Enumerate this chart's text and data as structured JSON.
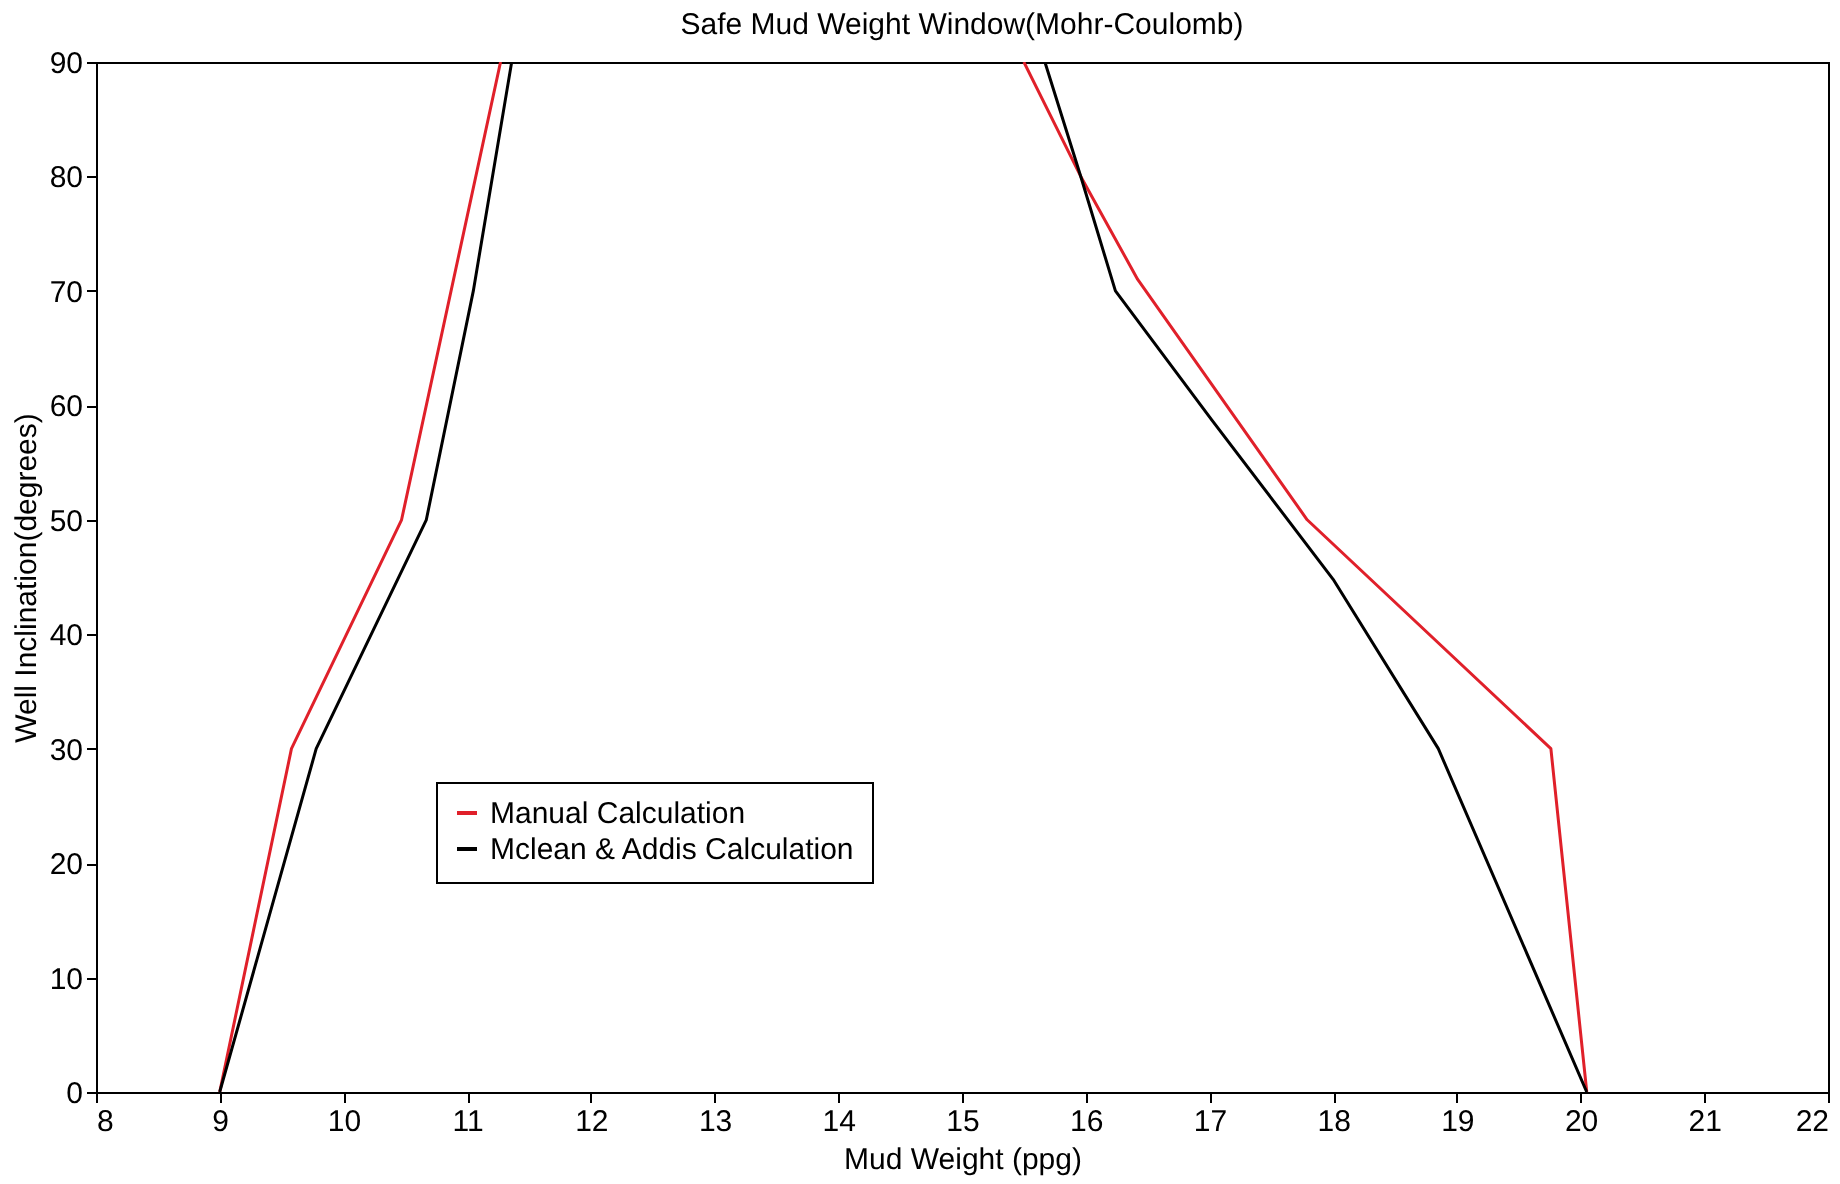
{
  "chart_data": {
    "type": "line",
    "title": "Safe Mud Weight Window(Mohr-Coulomb)",
    "xlabel": "Mud Weight (ppg)",
    "ylabel": "Well Inclination(degrees)",
    "xlim": [
      8,
      22
    ],
    "xticks": [
      8,
      9,
      10,
      11,
      12,
      13,
      14,
      15,
      16,
      17,
      18,
      19,
      20,
      21,
      22
    ],
    "ylim": [
      0,
      90
    ],
    "yticks": [
      0,
      10,
      20,
      30,
      40,
      50,
      60,
      70,
      80,
      90
    ],
    "grid": false,
    "legend": "bottom left",
    "marker": "none",
    "line_style": "solid",
    "series": [
      {
        "name": "Manual Calculation",
        "color": "#e0202a",
        "x": [
          9,
          9.58,
          10.47,
          11.27,
          null,
          15.5,
          15.96,
          16.42,
          17.79,
          19.76,
          20.05
        ],
        "values": [
          0,
          30,
          50,
          90,
          null,
          90,
          80,
          71,
          50,
          30,
          0
        ]
      },
      {
        "name": "Mclean & Addis Calculation",
        "color": "#000000",
        "x": [
          9,
          9.78,
          10.67,
          11.05,
          11.36,
          null,
          15.67,
          15.96,
          16.24,
          17.02,
          18.0,
          18.85,
          20.05
        ],
        "values": [
          0,
          30,
          50,
          70,
          90,
          null,
          90,
          80,
          70,
          58.7,
          44.8,
          30,
          0
        ]
      }
    ]
  }
}
